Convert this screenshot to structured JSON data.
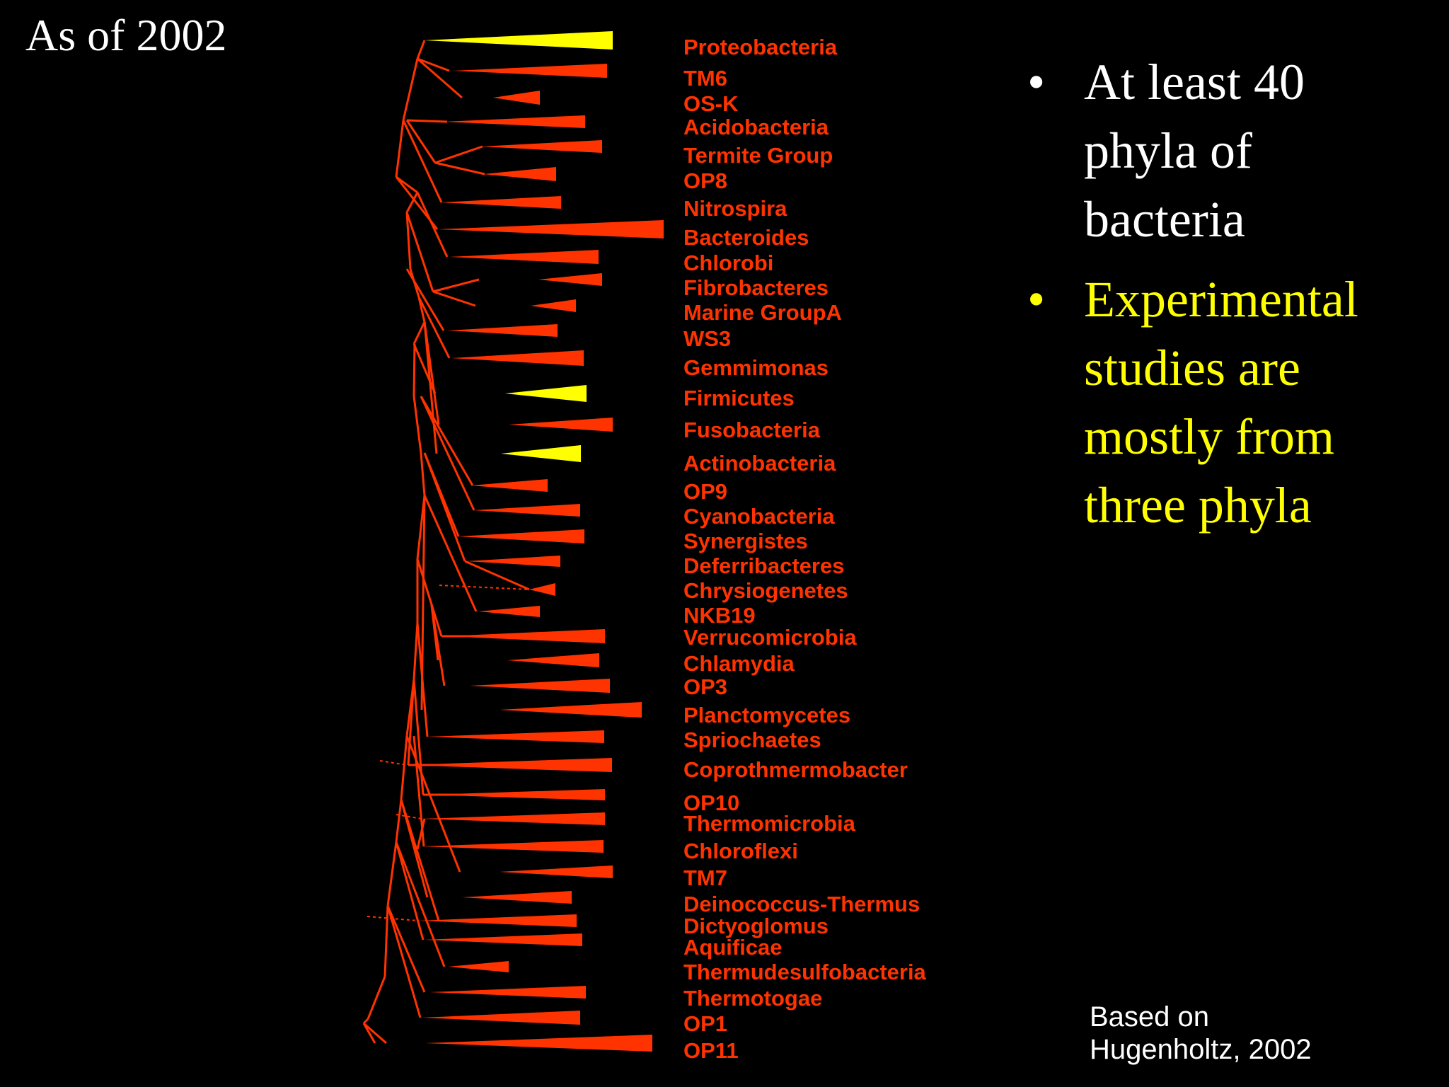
{
  "title": "As of 2002",
  "colors": {
    "red": "#ff3300",
    "yellow": "#ffff00",
    "white": "#ffffff",
    "background": "#000000"
  },
  "tree": {
    "leaves": [
      {
        "label": "Proteobacteria",
        "color": "yellow"
      },
      {
        "label": "TM6",
        "color": "red"
      },
      {
        "label": "OS-K",
        "color": "red"
      },
      {
        "label": "Acidobacteria",
        "color": "red"
      },
      {
        "label": "Termite Group",
        "color": "red"
      },
      {
        "label": "OP8",
        "color": "red"
      },
      {
        "label": "Nitrospira",
        "color": "red"
      },
      {
        "label": "Bacteroides",
        "color": "red"
      },
      {
        "label": "Chlorobi",
        "color": "red"
      },
      {
        "label": "Fibrobacteres",
        "color": "red"
      },
      {
        "label": "Marine GroupA",
        "color": "red"
      },
      {
        "label": "WS3",
        "color": "red"
      },
      {
        "label": "Gemmimonas",
        "color": "red"
      },
      {
        "label": "Firmicutes",
        "color": "yellow"
      },
      {
        "label": "Fusobacteria",
        "color": "red"
      },
      {
        "label": "Actinobacteria",
        "color": "yellow"
      },
      {
        "label": "OP9",
        "color": "red"
      },
      {
        "label": "Cyanobacteria",
        "color": "red"
      },
      {
        "label": "Synergistes",
        "color": "red"
      },
      {
        "label": "Deferribacteres",
        "color": "red"
      },
      {
        "label": "Chrysiogenetes",
        "color": "red"
      },
      {
        "label": "NKB19",
        "color": "red"
      },
      {
        "label": "Verrucomicrobia",
        "color": "red"
      },
      {
        "label": "Chlamydia",
        "color": "red"
      },
      {
        "label": "OP3",
        "color": "red"
      },
      {
        "label": "Planctomycetes",
        "color": "red"
      },
      {
        "label": "Spriochaetes",
        "color": "red"
      },
      {
        "label": "Coprothmermobacter",
        "color": "red"
      },
      {
        "label": "OP10",
        "color": "red"
      },
      {
        "label": "Thermomicrobia",
        "color": "red"
      },
      {
        "label": "Chloroflexi",
        "color": "red"
      },
      {
        "label": "TM7",
        "color": "red"
      },
      {
        "label": "Deinococcus-Thermus",
        "color": "red"
      },
      {
        "label": "Dictyoglomus",
        "color": "red"
      },
      {
        "label": "Aquificae",
        "color": "red"
      },
      {
        "label": "Thermudesulfobacteria",
        "color": "red"
      },
      {
        "label": "Thermotogae",
        "color": "red"
      },
      {
        "label": "OP1",
        "color": "red"
      },
      {
        "label": "OP11",
        "color": "red"
      }
    ]
  },
  "bullets": [
    {
      "symbol": "•",
      "text": "At least 40 phyla of bacteria",
      "color": "white"
    },
    {
      "symbol": "•",
      "text": "Experimental studies are mostly from three phyla",
      "color": "yellow"
    }
  ],
  "citation": {
    "line1": "Based on",
    "line2": "Hugenholtz, 2002"
  }
}
